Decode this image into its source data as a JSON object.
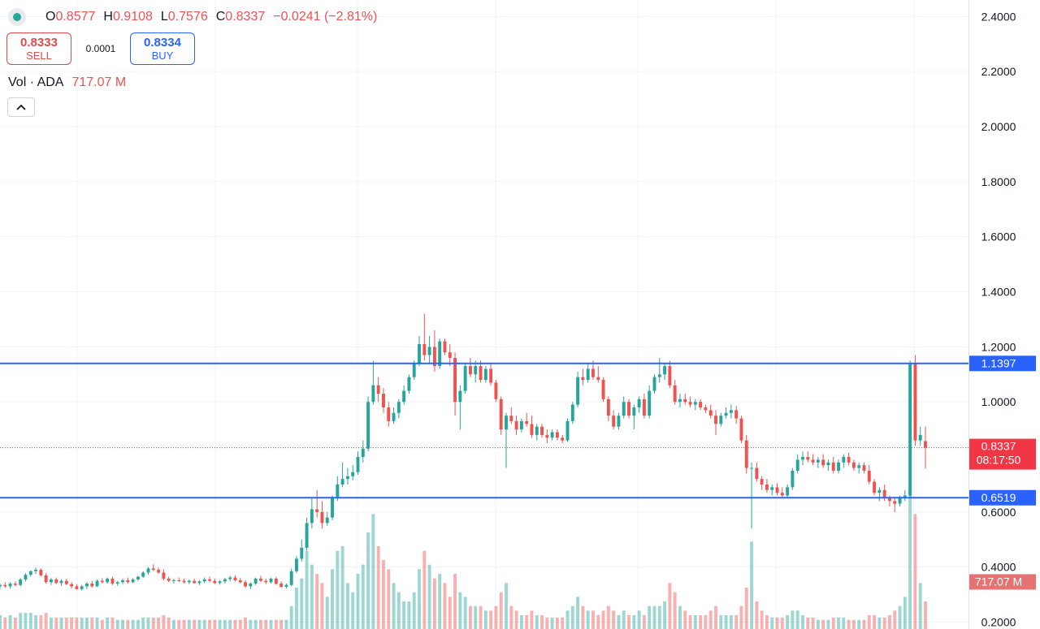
{
  "legend": {
    "open_label": "O",
    "open": "0.8577",
    "high_label": "H",
    "high": "0.9108",
    "low_label": "L",
    "low": "0.7576",
    "close_label": "C",
    "close": "0.8337",
    "change": "−0.0241 (−2.81%)"
  },
  "trade": {
    "sell_price": "0.8333",
    "sell_label": "SELL",
    "spread": "0.0001",
    "buy_price": "0.8334",
    "buy_label": "BUY"
  },
  "volume_legend": {
    "label": "Vol · ADA",
    "value": "717.07 M"
  },
  "icons": {
    "collapse": "chevron-up-icon",
    "status": "status-dot-icon"
  },
  "colors": {
    "up": "#26a69a",
    "down": "#ef5350",
    "level_line": "#2962ff",
    "current_price": "#f23645"
  },
  "chart_data": {
    "type": "candlestick",
    "y_ticks": [
      "2.4000",
      "2.2000",
      "2.0000",
      "1.8000",
      "1.6000",
      "1.4000",
      "1.2000",
      "1.0000",
      "0.6000",
      "0.4000",
      "0.2000"
    ],
    "y_range": [
      0.175,
      2.46
    ],
    "horizontal_lines": [
      {
        "value": 1.1397,
        "label": "1.1397"
      },
      {
        "value": 0.6519,
        "label": "0.6519"
      }
    ],
    "current_price": {
      "value": 0.8337,
      "label": "0.8337",
      "countdown": "08:17:50"
    },
    "volume_label": "717.07 M",
    "grid": true,
    "candles": [
      [
        0.33,
        0.34,
        0.32,
        0.335,
        0.06
      ],
      [
        0.335,
        0.345,
        0.325,
        0.33,
        0.05
      ],
      [
        0.33,
        0.345,
        0.322,
        0.34,
        0.06
      ],
      [
        0.34,
        0.348,
        0.33,
        0.335,
        0.05
      ],
      [
        0.335,
        0.36,
        0.33,
        0.355,
        0.07
      ],
      [
        0.355,
        0.378,
        0.348,
        0.372,
        0.07
      ],
      [
        0.372,
        0.388,
        0.365,
        0.385,
        0.07
      ],
      [
        0.385,
        0.398,
        0.375,
        0.39,
        0.06
      ],
      [
        0.39,
        0.395,
        0.365,
        0.37,
        0.06
      ],
      [
        0.37,
        0.378,
        0.34,
        0.345,
        0.07
      ],
      [
        0.345,
        0.36,
        0.335,
        0.355,
        0.05
      ],
      [
        0.355,
        0.362,
        0.338,
        0.342,
        0.05
      ],
      [
        0.342,
        0.355,
        0.332,
        0.35,
        0.05
      ],
      [
        0.35,
        0.358,
        0.335,
        0.338,
        0.05
      ],
      [
        0.338,
        0.345,
        0.322,
        0.33,
        0.05
      ],
      [
        0.33,
        0.338,
        0.318,
        0.32,
        0.05
      ],
      [
        0.32,
        0.335,
        0.315,
        0.33,
        0.05
      ],
      [
        0.33,
        0.345,
        0.32,
        0.34,
        0.05
      ],
      [
        0.34,
        0.35,
        0.325,
        0.33,
        0.05
      ],
      [
        0.33,
        0.355,
        0.328,
        0.35,
        0.05
      ],
      [
        0.35,
        0.36,
        0.34,
        0.345,
        0.04
      ],
      [
        0.345,
        0.362,
        0.34,
        0.358,
        0.05
      ],
      [
        0.358,
        0.365,
        0.335,
        0.34,
        0.05
      ],
      [
        0.34,
        0.35,
        0.332,
        0.345,
        0.04
      ],
      [
        0.345,
        0.358,
        0.338,
        0.352,
        0.04
      ],
      [
        0.352,
        0.362,
        0.34,
        0.345,
        0.04
      ],
      [
        0.345,
        0.36,
        0.342,
        0.355,
        0.04
      ],
      [
        0.355,
        0.368,
        0.35,
        0.365,
        0.04
      ],
      [
        0.365,
        0.385,
        0.36,
        0.38,
        0.05
      ],
      [
        0.38,
        0.4,
        0.372,
        0.395,
        0.05
      ],
      [
        0.395,
        0.41,
        0.385,
        0.39,
        0.05
      ],
      [
        0.39,
        0.398,
        0.375,
        0.38,
        0.05
      ],
      [
        0.38,
        0.392,
        0.352,
        0.358,
        0.06
      ],
      [
        0.358,
        0.365,
        0.345,
        0.35,
        0.05
      ],
      [
        0.35,
        0.358,
        0.34,
        0.352,
        0.04
      ],
      [
        0.352,
        0.362,
        0.345,
        0.35,
        0.04
      ],
      [
        0.35,
        0.358,
        0.34,
        0.345,
        0.04
      ],
      [
        0.345,
        0.355,
        0.338,
        0.35,
        0.04
      ],
      [
        0.35,
        0.358,
        0.34,
        0.342,
        0.04
      ],
      [
        0.342,
        0.352,
        0.335,
        0.348,
        0.04
      ],
      [
        0.348,
        0.362,
        0.342,
        0.355,
        0.04
      ],
      [
        0.355,
        0.365,
        0.345,
        0.35,
        0.04
      ],
      [
        0.35,
        0.358,
        0.338,
        0.342,
        0.04
      ],
      [
        0.342,
        0.352,
        0.336,
        0.348,
        0.04
      ],
      [
        0.348,
        0.36,
        0.34,
        0.356,
        0.04
      ],
      [
        0.356,
        0.368,
        0.348,
        0.362,
        0.04
      ],
      [
        0.362,
        0.37,
        0.348,
        0.352,
        0.04
      ],
      [
        0.352,
        0.36,
        0.34,
        0.345,
        0.04
      ],
      [
        0.345,
        0.352,
        0.325,
        0.33,
        0.05
      ],
      [
        0.33,
        0.345,
        0.32,
        0.34,
        0.04
      ],
      [
        0.34,
        0.362,
        0.335,
        0.358,
        0.04
      ],
      [
        0.358,
        0.368,
        0.345,
        0.35,
        0.04
      ],
      [
        0.35,
        0.358,
        0.338,
        0.345,
        0.04
      ],
      [
        0.345,
        0.362,
        0.34,
        0.358,
        0.04
      ],
      [
        0.358,
        0.364,
        0.335,
        0.34,
        0.04
      ],
      [
        0.34,
        0.348,
        0.325,
        0.328,
        0.04
      ],
      [
        0.328,
        0.34,
        0.322,
        0.335,
        0.04
      ],
      [
        0.335,
        0.395,
        0.33,
        0.385,
        0.1
      ],
      [
        0.385,
        0.44,
        0.378,
        0.43,
        0.18
      ],
      [
        0.43,
        0.5,
        0.42,
        0.47,
        0.22
      ],
      [
        0.47,
        0.58,
        0.46,
        0.56,
        0.34
      ],
      [
        0.56,
        0.65,
        0.54,
        0.61,
        0.28
      ],
      [
        0.61,
        0.68,
        0.58,
        0.6,
        0.24
      ],
      [
        0.6,
        0.64,
        0.54,
        0.56,
        0.2
      ],
      [
        0.56,
        0.6,
        0.55,
        0.58,
        0.14
      ],
      [
        0.58,
        0.66,
        0.57,
        0.65,
        0.26
      ],
      [
        0.65,
        0.73,
        0.64,
        0.7,
        0.34
      ],
      [
        0.7,
        0.78,
        0.69,
        0.72,
        0.36
      ],
      [
        0.72,
        0.76,
        0.7,
        0.73,
        0.2
      ],
      [
        0.73,
        0.77,
        0.715,
        0.745,
        0.16
      ],
      [
        0.745,
        0.82,
        0.735,
        0.8,
        0.24
      ],
      [
        0.8,
        0.86,
        0.78,
        0.83,
        0.28
      ],
      [
        0.83,
        1.02,
        0.82,
        1.0,
        0.42
      ],
      [
        1.0,
        1.15,
        0.99,
        1.06,
        0.5
      ],
      [
        1.06,
        1.09,
        1.0,
        1.03,
        0.36
      ],
      [
        1.03,
        1.05,
        0.96,
        0.98,
        0.3
      ],
      [
        0.98,
        1.0,
        0.91,
        0.93,
        0.26
      ],
      [
        0.93,
        0.98,
        0.92,
        0.96,
        0.2
      ],
      [
        0.96,
        1.01,
        0.94,
        1.0,
        0.16
      ],
      [
        1.0,
        1.06,
        0.99,
        1.04,
        0.12
      ],
      [
        1.04,
        1.1,
        1.03,
        1.09,
        0.12
      ],
      [
        1.09,
        1.15,
        1.08,
        1.14,
        0.16
      ],
      [
        1.14,
        1.24,
        1.13,
        1.21,
        0.26
      ],
      [
        1.21,
        1.32,
        1.15,
        1.17,
        0.34
      ],
      [
        1.17,
        1.24,
        1.14,
        1.2,
        0.28
      ],
      [
        1.2,
        1.26,
        1.11,
        1.13,
        0.22
      ],
      [
        1.13,
        1.23,
        1.12,
        1.22,
        0.24
      ],
      [
        1.22,
        1.23,
        1.17,
        1.18,
        0.2
      ],
      [
        1.18,
        1.21,
        1.13,
        1.16,
        0.14
      ],
      [
        1.16,
        1.18,
        0.95,
        1.0,
        0.24
      ],
      [
        1.0,
        1.06,
        0.9,
        1.04,
        0.16
      ],
      [
        1.04,
        1.14,
        1.03,
        1.13,
        0.14
      ],
      [
        1.13,
        1.16,
        1.09,
        1.1,
        0.1
      ],
      [
        1.1,
        1.15,
        1.07,
        1.13,
        0.1
      ],
      [
        1.13,
        1.15,
        1.07,
        1.08,
        0.1
      ],
      [
        1.08,
        1.13,
        1.07,
        1.12,
        0.08
      ],
      [
        1.12,
        1.14,
        1.06,
        1.07,
        0.08
      ],
      [
        1.07,
        1.08,
        1.0,
        1.01,
        0.1
      ],
      [
        1.01,
        1.02,
        0.88,
        0.9,
        0.16
      ],
      [
        0.9,
        0.96,
        0.76,
        0.95,
        0.2
      ],
      [
        0.95,
        0.98,
        0.92,
        0.93,
        0.1
      ],
      [
        0.93,
        0.95,
        0.88,
        0.9,
        0.08
      ],
      [
        0.9,
        0.94,
        0.89,
        0.93,
        0.06
      ],
      [
        0.93,
        0.96,
        0.91,
        0.92,
        0.06
      ],
      [
        0.92,
        0.95,
        0.87,
        0.88,
        0.08
      ],
      [
        0.88,
        0.92,
        0.86,
        0.91,
        0.06
      ],
      [
        0.91,
        0.92,
        0.87,
        0.88,
        0.06
      ],
      [
        0.88,
        0.9,
        0.85,
        0.87,
        0.05
      ],
      [
        0.87,
        0.9,
        0.86,
        0.89,
        0.05
      ],
      [
        0.89,
        0.9,
        0.86,
        0.87,
        0.05
      ],
      [
        0.87,
        0.88,
        0.85,
        0.86,
        0.05
      ],
      [
        0.86,
        0.94,
        0.855,
        0.93,
        0.08
      ],
      [
        0.93,
        1.0,
        0.92,
        0.99,
        0.1
      ],
      [
        0.99,
        1.11,
        0.98,
        1.09,
        0.14
      ],
      [
        1.09,
        1.12,
        1.06,
        1.08,
        0.1
      ],
      [
        1.08,
        1.14,
        1.07,
        1.12,
        0.08
      ],
      [
        1.12,
        1.15,
        1.08,
        1.09,
        0.08
      ],
      [
        1.09,
        1.13,
        1.07,
        1.08,
        0.06
      ],
      [
        1.08,
        1.09,
        1.0,
        1.01,
        0.08
      ],
      [
        1.01,
        1.02,
        0.93,
        0.95,
        0.1
      ],
      [
        0.95,
        0.97,
        0.9,
        0.91,
        0.08
      ],
      [
        0.91,
        0.96,
        0.9,
        0.95,
        0.06
      ],
      [
        0.95,
        1.02,
        0.94,
        1.0,
        0.08
      ],
      [
        1.0,
        1.01,
        0.94,
        0.95,
        0.06
      ],
      [
        0.95,
        0.99,
        0.9,
        0.98,
        0.06
      ],
      [
        0.98,
        1.02,
        0.96,
        1.01,
        0.08
      ],
      [
        1.01,
        1.03,
        0.94,
        0.95,
        0.06
      ],
      [
        0.95,
        1.06,
        0.94,
        1.04,
        0.1
      ],
      [
        1.04,
        1.1,
        1.03,
        1.09,
        0.1
      ],
      [
        1.09,
        1.16,
        1.07,
        1.1,
        0.1
      ],
      [
        1.1,
        1.14,
        1.08,
        1.13,
        0.12
      ],
      [
        1.13,
        1.15,
        1.05,
        1.06,
        0.2
      ],
      [
        1.06,
        1.08,
        0.99,
        1.0,
        0.16
      ],
      [
        1.0,
        1.03,
        0.98,
        1.01,
        0.1
      ],
      [
        1.01,
        1.03,
        0.99,
        1.0,
        0.08
      ],
      [
        1.0,
        1.02,
        0.98,
        0.99,
        0.06
      ],
      [
        0.99,
        1.01,
        0.97,
        1.0,
        0.06
      ],
      [
        1.0,
        1.01,
        0.97,
        0.98,
        0.06
      ],
      [
        0.98,
        0.99,
        0.96,
        0.97,
        0.06
      ],
      [
        0.97,
        0.99,
        0.94,
        0.95,
        0.08
      ],
      [
        0.95,
        0.97,
        0.88,
        0.92,
        0.1
      ],
      [
        0.92,
        0.96,
        0.91,
        0.95,
        0.06
      ],
      [
        0.95,
        0.98,
        0.94,
        0.96,
        0.06
      ],
      [
        0.96,
        0.99,
        0.94,
        0.97,
        0.06
      ],
      [
        0.97,
        0.985,
        0.92,
        0.94,
        0.06
      ],
      [
        0.94,
        0.95,
        0.85,
        0.86,
        0.1
      ],
      [
        0.86,
        0.88,
        0.74,
        0.76,
        0.18
      ],
      [
        0.76,
        0.78,
        0.54,
        0.76,
        0.38
      ],
      [
        0.76,
        0.78,
        0.71,
        0.72,
        0.12
      ],
      [
        0.72,
        0.73,
        0.68,
        0.7,
        0.08
      ],
      [
        0.7,
        0.72,
        0.67,
        0.68,
        0.06
      ],
      [
        0.68,
        0.7,
        0.66,
        0.69,
        0.05
      ],
      [
        0.69,
        0.705,
        0.66,
        0.67,
        0.05
      ],
      [
        0.67,
        0.69,
        0.65,
        0.66,
        0.05
      ],
      [
        0.66,
        0.7,
        0.65,
        0.69,
        0.06
      ],
      [
        0.69,
        0.76,
        0.68,
        0.75,
        0.08
      ],
      [
        0.75,
        0.81,
        0.74,
        0.79,
        0.08
      ],
      [
        0.79,
        0.82,
        0.77,
        0.8,
        0.06
      ],
      [
        0.8,
        0.82,
        0.78,
        0.79,
        0.05
      ],
      [
        0.79,
        0.81,
        0.77,
        0.78,
        0.05
      ],
      [
        0.78,
        0.8,
        0.76,
        0.79,
        0.04
      ],
      [
        0.79,
        0.81,
        0.76,
        0.77,
        0.04
      ],
      [
        0.77,
        0.79,
        0.75,
        0.78,
        0.04
      ],
      [
        0.78,
        0.8,
        0.74,
        0.75,
        0.05
      ],
      [
        0.75,
        0.79,
        0.74,
        0.78,
        0.05
      ],
      [
        0.78,
        0.81,
        0.76,
        0.8,
        0.05
      ],
      [
        0.8,
        0.815,
        0.77,
        0.78,
        0.04
      ],
      [
        0.78,
        0.79,
        0.75,
        0.76,
        0.04
      ],
      [
        0.76,
        0.78,
        0.74,
        0.77,
        0.04
      ],
      [
        0.77,
        0.78,
        0.74,
        0.75,
        0.04
      ],
      [
        0.75,
        0.77,
        0.7,
        0.71,
        0.06
      ],
      [
        0.71,
        0.72,
        0.66,
        0.67,
        0.06
      ],
      [
        0.67,
        0.69,
        0.64,
        0.68,
        0.05
      ],
      [
        0.68,
        0.7,
        0.64,
        0.65,
        0.05
      ],
      [
        0.65,
        0.66,
        0.62,
        0.64,
        0.06
      ],
      [
        0.64,
        0.65,
        0.6,
        0.63,
        0.08
      ],
      [
        0.63,
        0.66,
        0.62,
        0.65,
        0.1
      ],
      [
        0.65,
        0.68,
        0.64,
        0.66,
        0.14
      ],
      [
        0.66,
        1.15,
        0.65,
        1.14,
        0.6
      ],
      [
        1.14,
        1.17,
        0.84,
        0.86,
        0.5
      ],
      [
        0.86,
        0.91,
        0.84,
        0.88,
        0.2
      ],
      [
        0.8577,
        0.9108,
        0.7576,
        0.8337,
        0.12
      ]
    ]
  }
}
